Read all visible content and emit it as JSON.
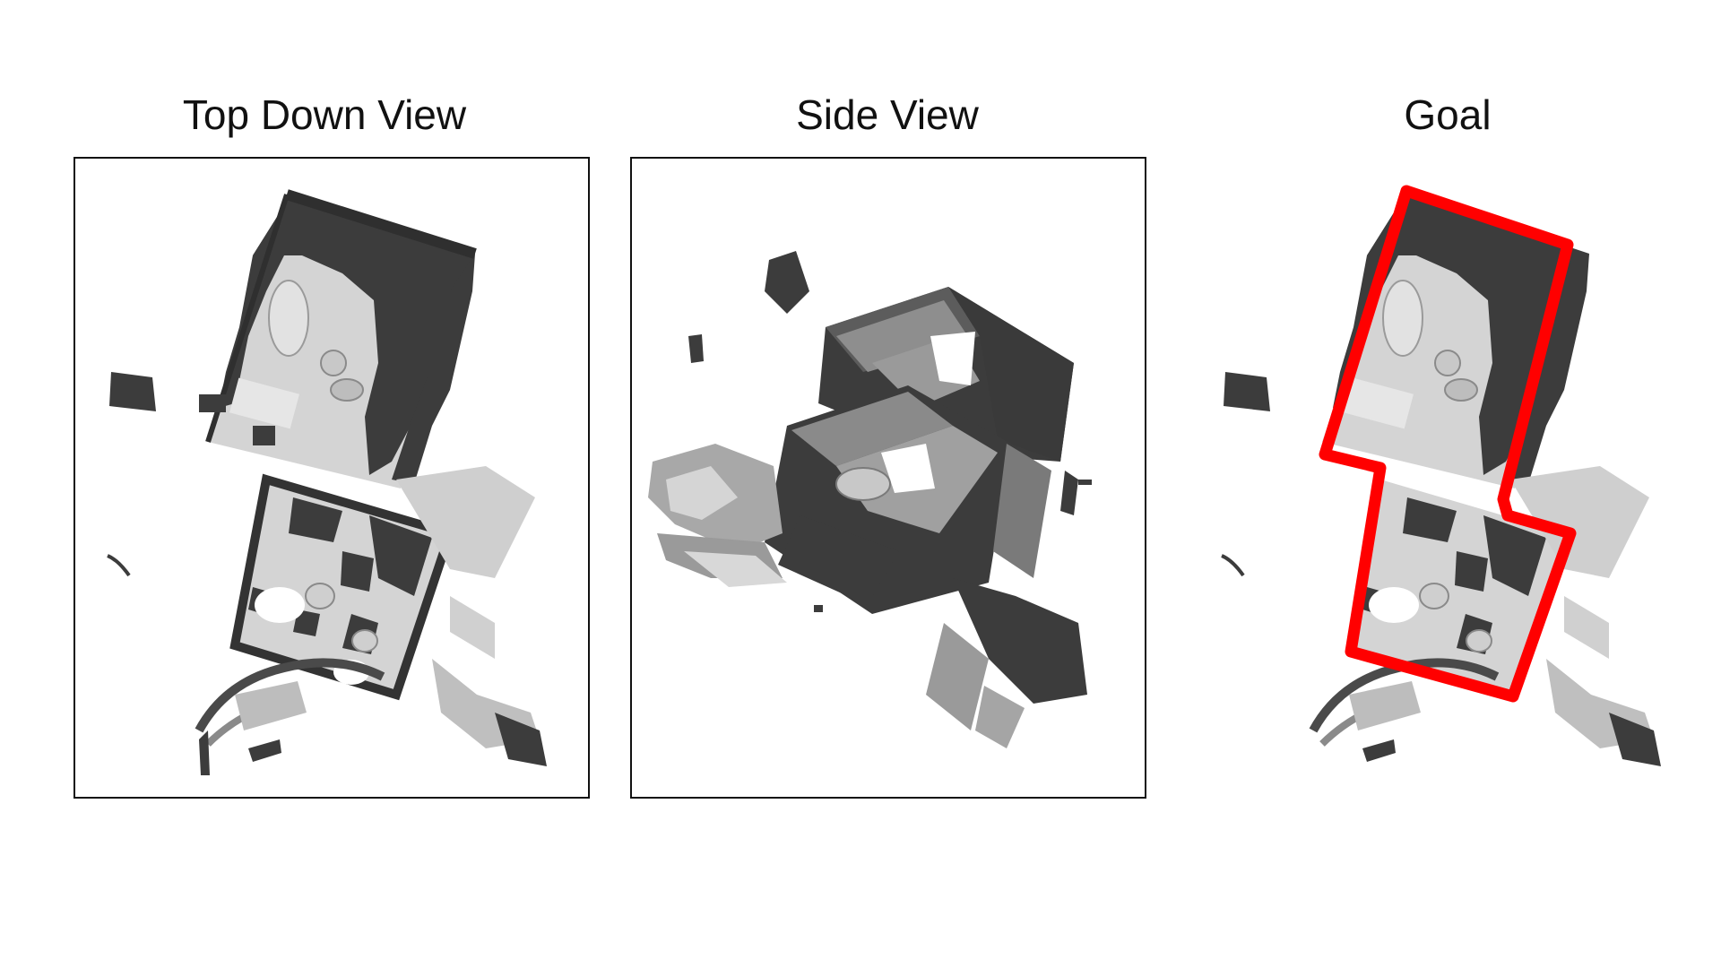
{
  "figure": {
    "panels": [
      {
        "title": "Top Down View"
      },
      {
        "title": "Side View"
      },
      {
        "title": "Goal"
      }
    ],
    "colors": {
      "background": "#ffffff",
      "frame": "#111111",
      "dark_structure": "#3c3c3c",
      "mid_gray": "#8c8c8c",
      "light_surface": "#d2d2d2",
      "goal_outline": "#ff0000"
    }
  }
}
